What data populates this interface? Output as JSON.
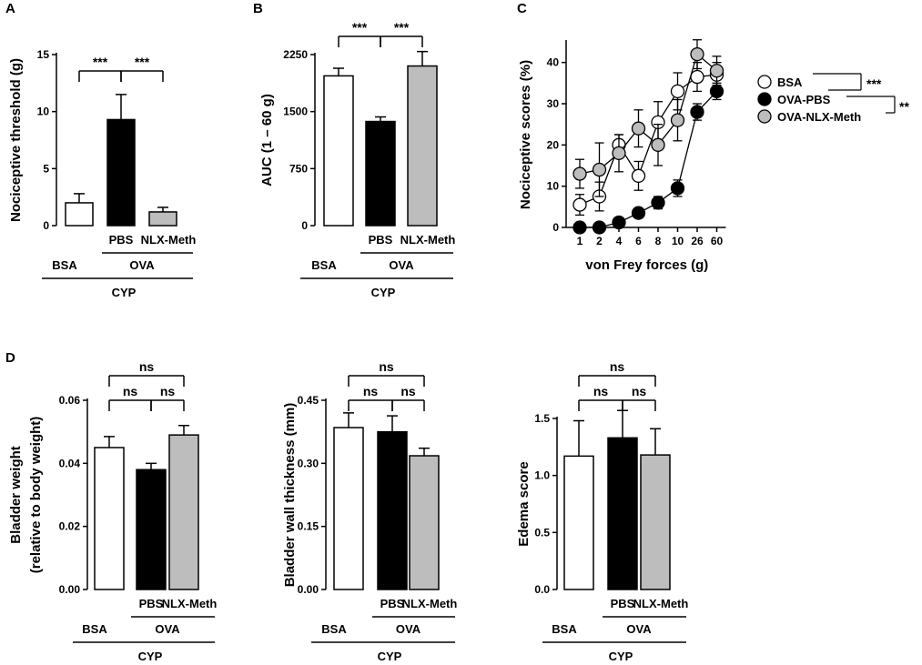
{
  "panel_labels": [
    "A",
    "B",
    "C",
    "D"
  ],
  "colors": {
    "BSA": "#ffffff",
    "OVA-PBS": "#000000",
    "OVA-NLX-Meth": "#bdbdbd",
    "axis": "#000000"
  },
  "chart_data": [
    {
      "id": "A",
      "type": "bar",
      "ylabel": "Nociceptive threshold (g)",
      "ylim": [
        0,
        15
      ],
      "yticks": [
        "0",
        "5",
        "10",
        "15"
      ],
      "ytick_values": [
        0,
        5,
        10,
        15
      ],
      "categories": [
        "BSA",
        "PBS",
        "NLX-Meth"
      ],
      "values": [
        2.0,
        9.3,
        1.2
      ],
      "errors": [
        0.8,
        2.2,
        0.4
      ],
      "group_labels": {
        "sub_labels": [
          "PBS",
          "NLX-Meth"
        ],
        "left": "BSA",
        "mid": "OVA",
        "bottom": "CYP"
      },
      "significance": [
        "***",
        "***"
      ]
    },
    {
      "id": "B",
      "type": "bar",
      "ylabel": "AUC (1 – 60 g)",
      "ylim": [
        0,
        2250
      ],
      "yticks": [
        "0",
        "750",
        "1500",
        "2250"
      ],
      "ytick_values": [
        0,
        750,
        1500,
        2250
      ],
      "categories": [
        "BSA",
        "PBS",
        "NLX-Meth"
      ],
      "values": [
        1970,
        1370,
        2100
      ],
      "errors": [
        100,
        60,
        190
      ],
      "group_labels": {
        "sub_labels": [
          "PBS",
          "NLX-Meth"
        ],
        "left": "BSA",
        "mid": "OVA",
        "bottom": "CYP"
      },
      "significance": [
        "***",
        "***"
      ]
    },
    {
      "id": "C",
      "type": "line",
      "ylabel": "Nociceptive scores (%)",
      "xlabel": "von Frey forces (g)",
      "ylim": [
        0,
        45
      ],
      "yticks": [
        "0",
        "10",
        "20",
        "30",
        "40"
      ],
      "ytick_values": [
        0,
        10,
        20,
        30,
        40
      ],
      "x": [
        "1",
        "2",
        "4",
        "6",
        "8",
        "10",
        "26",
        "60"
      ],
      "series": [
        {
          "name": "BSA",
          "values": [
            5.5,
            7.5,
            20.0,
            12.5,
            25.5,
            33.0,
            36.5,
            37.0
          ],
          "errors": [
            2.5,
            3.5,
            2.5,
            3.5,
            5.0,
            4.5,
            3.5,
            3.0
          ]
        },
        {
          "name": "OVA-PBS",
          "values": [
            0.0,
            0.0,
            1.2,
            3.5,
            6.0,
            9.5,
            28.0,
            33.0
          ],
          "errors": [
            0.0,
            0.0,
            0.5,
            1.0,
            1.5,
            2.0,
            2.0,
            2.0
          ]
        },
        {
          "name": "OVA-NLX-Meth",
          "values": [
            13.0,
            14.0,
            18.0,
            24.0,
            20.0,
            26.0,
            42.0,
            38.0
          ],
          "errors": [
            3.5,
            6.5,
            4.5,
            4.5,
            5.0,
            5.0,
            3.5,
            3.5
          ]
        }
      ],
      "legend": [
        "BSA",
        "OVA-PBS",
        "OVA-NLX-Meth"
      ],
      "legend_position": "right",
      "significance": [
        "***",
        "**"
      ]
    },
    {
      "id": "D1",
      "type": "bar",
      "ylabel": "Bladder weight",
      "ylabel2": "(relative to body weight)",
      "ylim": [
        0,
        0.06
      ],
      "yticks": [
        "0.00",
        "0.02",
        "0.04",
        "0.06"
      ],
      "ytick_values": [
        0,
        0.02,
        0.04,
        0.06
      ],
      "categories": [
        "BSA",
        "PBS",
        "NLX-Meth"
      ],
      "values": [
        0.045,
        0.038,
        0.049
      ],
      "errors": [
        0.0035,
        0.002,
        0.003
      ],
      "group_labels": {
        "sub_labels": [
          "PBS",
          "NLX-Meth"
        ],
        "left": "BSA",
        "mid": "OVA",
        "bottom": "CYP"
      },
      "significance": [
        "ns",
        "ns",
        "ns"
      ]
    },
    {
      "id": "D2",
      "type": "bar",
      "ylabel": "Bladder wall thickness (mm)",
      "ylim": [
        0,
        0.45
      ],
      "yticks": [
        "0.00",
        "0.15",
        "0.30",
        "0.45"
      ],
      "ytick_values": [
        0,
        0.15,
        0.3,
        0.45
      ],
      "categories": [
        "BSA",
        "PBS",
        "NLX-Meth"
      ],
      "values": [
        0.385,
        0.375,
        0.318
      ],
      "errors": [
        0.035,
        0.038,
        0.018
      ],
      "group_labels": {
        "sub_labels": [
          "PBS",
          "NLX-Meth"
        ],
        "left": "BSA",
        "mid": "OVA",
        "bottom": "CYP"
      },
      "significance": [
        "ns",
        "ns",
        "ns"
      ]
    },
    {
      "id": "D3",
      "type": "bar",
      "ylabel": "Edema score",
      "ylim": [
        0,
        1.5
      ],
      "yticks": [
        "0.0",
        "0.5",
        "1.0",
        "1.5"
      ],
      "ytick_values": [
        0,
        0.5,
        1.0,
        1.5
      ],
      "categories": [
        "BSA",
        "PBS",
        "NLX-Meth"
      ],
      "values": [
        1.17,
        1.33,
        1.18
      ],
      "errors": [
        0.31,
        0.24,
        0.23
      ],
      "group_labels": {
        "sub_labels": [
          "PBS",
          "NLX-Meth"
        ],
        "left": "BSA",
        "mid": "OVA",
        "bottom": "CYP"
      },
      "significance": [
        "ns",
        "ns",
        "ns"
      ]
    }
  ]
}
